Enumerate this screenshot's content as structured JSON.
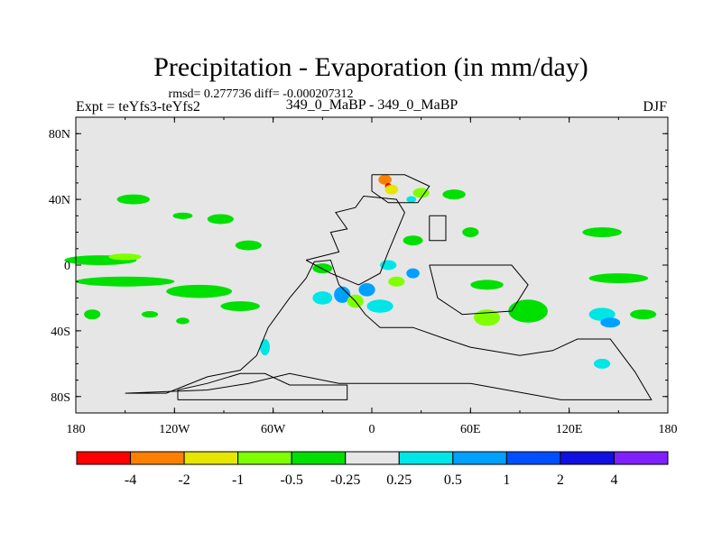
{
  "chart_data": {
    "type": "heatmap",
    "title": "Precipitation - Evaporation (in mm/day)",
    "stats_text": "rmsd= 0.277736  diff= -0.000207312",
    "left_label": "Expt = teYfs3-teYfs2",
    "center_label": "349_0_MaBP - 349_0_MaBP",
    "right_label": "DJF",
    "x_ticks": [
      {
        "value": -180,
        "label": "180"
      },
      {
        "value": -120,
        "label": "120W"
      },
      {
        "value": -60,
        "label": "60W"
      },
      {
        "value": 0,
        "label": "0"
      },
      {
        "value": 60,
        "label": "60E"
      },
      {
        "value": 120,
        "label": "120E"
      },
      {
        "value": 180,
        "label": "180"
      }
    ],
    "y_ticks": [
      {
        "value": 80,
        "label": "80N"
      },
      {
        "value": 40,
        "label": "40N"
      },
      {
        "value": 0,
        "label": "0"
      },
      {
        "value": -40,
        "label": "40S"
      },
      {
        "value": -80,
        "label": "80S"
      }
    ],
    "xlim": [
      -180,
      180
    ],
    "ylim": [
      -90,
      90
    ],
    "colorbar": {
      "colors": [
        "#ff0000",
        "#ff8000",
        "#e6e600",
        "#80ff00",
        "#00e000",
        "#e6e6e6",
        "#00e6e6",
        "#00a0ff",
        "#0050ff",
        "#1010e0",
        "#8020ff"
      ],
      "labels": [
        "-4",
        "-2",
        "-1",
        "-0.5",
        "-0.25",
        "0.25",
        "0.5",
        "1",
        "2",
        "4"
      ]
    },
    "background_color": "#e6e6e6",
    "anomalies": [
      {
        "lon": -165,
        "lat": 3,
        "rx": 22,
        "ry": 3,
        "level": -0.25
      },
      {
        "lon": -150,
        "lat": 5,
        "rx": 10,
        "ry": 2,
        "level": -0.5
      },
      {
        "lon": -150,
        "lat": -10,
        "rx": 30,
        "ry": 3,
        "level": -0.25
      },
      {
        "lon": -105,
        "lat": -16,
        "rx": 20,
        "ry": 4,
        "level": -0.25
      },
      {
        "lon": -80,
        "lat": -25,
        "rx": 12,
        "ry": 3,
        "level": -0.25
      },
      {
        "lon": -145,
        "lat": 40,
        "rx": 10,
        "ry": 3,
        "level": -0.25
      },
      {
        "lon": -165,
        "lat": 25,
        "rx": 8,
        "ry": 3,
        "level": 0.25
      },
      {
        "lon": -92,
        "lat": 28,
        "rx": 8,
        "ry": 3,
        "level": -0.25
      },
      {
        "lon": -75,
        "lat": 12,
        "rx": 8,
        "ry": 3,
        "level": -0.25
      },
      {
        "lon": -115,
        "lat": 30,
        "rx": 6,
        "ry": 2,
        "level": -0.25
      },
      {
        "lon": -170,
        "lat": -30,
        "rx": 5,
        "ry": 3,
        "level": -0.25
      },
      {
        "lon": -135,
        "lat": -30,
        "rx": 5,
        "ry": 2,
        "level": -0.25
      },
      {
        "lon": -115,
        "lat": -34,
        "rx": 4,
        "ry": 2,
        "level": -0.25
      },
      {
        "lon": -30,
        "lat": -2,
        "rx": 6,
        "ry": 3,
        "level": -0.25
      },
      {
        "lon": -20,
        "lat": 5,
        "rx": 6,
        "ry": 3,
        "level": 0.25
      },
      {
        "lon": -30,
        "lat": -20,
        "rx": 6,
        "ry": 4,
        "level": 0.5
      },
      {
        "lon": -18,
        "lat": -18,
        "rx": 5,
        "ry": 5,
        "level": 1
      },
      {
        "lon": -10,
        "lat": -22,
        "rx": 5,
        "ry": 4,
        "level": -0.5
      },
      {
        "lon": -3,
        "lat": -15,
        "rx": 5,
        "ry": 4,
        "level": 1
      },
      {
        "lon": 5,
        "lat": -25,
        "rx": 8,
        "ry": 4,
        "level": 0.5
      },
      {
        "lon": 15,
        "lat": -10,
        "rx": 5,
        "ry": 3,
        "level": -0.5
      },
      {
        "lon": 10,
        "lat": 0,
        "rx": 5,
        "ry": 3,
        "level": 0.5
      },
      {
        "lon": 25,
        "lat": -5,
        "rx": 4,
        "ry": 3,
        "level": 1
      },
      {
        "lon": -8,
        "lat": -30,
        "rx": 4,
        "ry": 2,
        "level": 0.25
      },
      {
        "lon": 8,
        "lat": 52,
        "rx": 4,
        "ry": 3,
        "level": -2
      },
      {
        "lon": 10,
        "lat": 48,
        "rx": 2,
        "ry": 2,
        "level": -4
      },
      {
        "lon": 12,
        "lat": 46,
        "rx": 4,
        "ry": 3,
        "level": -1
      },
      {
        "lon": 30,
        "lat": 44,
        "rx": 5,
        "ry": 3,
        "level": -0.5
      },
      {
        "lon": 21,
        "lat": 47,
        "rx": 4,
        "ry": 3,
        "level": 0.25
      },
      {
        "lon": 24,
        "lat": 40,
        "rx": 3,
        "ry": 2,
        "level": 0.5
      },
      {
        "lon": 50,
        "lat": 43,
        "rx": 7,
        "ry": 3,
        "level": -0.25
      },
      {
        "lon": 60,
        "lat": 20,
        "rx": 5,
        "ry": 3,
        "level": -0.25
      },
      {
        "lon": 25,
        "lat": 15,
        "rx": 6,
        "ry": 3,
        "level": -0.25
      },
      {
        "lon": 50,
        "lat": 30,
        "rx": 4,
        "ry": 2,
        "level": 0.25
      },
      {
        "lon": 55,
        "lat": -10,
        "rx": 20,
        "ry": 3,
        "level": 0.25
      },
      {
        "lon": 70,
        "lat": -12,
        "rx": 10,
        "ry": 3,
        "level": -0.25
      },
      {
        "lon": 95,
        "lat": -28,
        "rx": 12,
        "ry": 7,
        "level": -0.25
      },
      {
        "lon": 70,
        "lat": -32,
        "rx": 8,
        "ry": 5,
        "level": -0.5
      },
      {
        "lon": 60,
        "lat": -22,
        "rx": 8,
        "ry": 3,
        "level": 0.25
      },
      {
        "lon": 125,
        "lat": -20,
        "rx": 12,
        "ry": 4,
        "level": 0.25
      },
      {
        "lon": 140,
        "lat": -30,
        "rx": 8,
        "ry": 4,
        "level": 0.5
      },
      {
        "lon": 145,
        "lat": -35,
        "rx": 6,
        "ry": 3,
        "level": 1
      },
      {
        "lon": 165,
        "lat": -30,
        "rx": 8,
        "ry": 3,
        "level": -0.25
      },
      {
        "lon": 150,
        "lat": -8,
        "rx": 18,
        "ry": 3,
        "level": -0.25
      },
      {
        "lon": 140,
        "lat": 20,
        "rx": 12,
        "ry": 3,
        "level": -0.25
      },
      {
        "lon": 165,
        "lat": 10,
        "rx": 10,
        "ry": 3,
        "level": 0.25
      },
      {
        "lon": 100,
        "lat": 0,
        "rx": 8,
        "ry": 2,
        "level": 0.25
      },
      {
        "lon": 50,
        "lat": -55,
        "rx": 8,
        "ry": 3,
        "level": 0.25
      },
      {
        "lon": 95,
        "lat": -60,
        "rx": 6,
        "ry": 3,
        "level": 0.25
      },
      {
        "lon": 140,
        "lat": -60,
        "rx": 5,
        "ry": 3,
        "level": 0.5
      },
      {
        "lon": -100,
        "lat": -55,
        "rx": 5,
        "ry": 3,
        "level": 0.25
      },
      {
        "lon": -65,
        "lat": -50,
        "rx": 3,
        "ry": 5,
        "level": 0.5
      },
      {
        "lon": -40,
        "lat": -70,
        "rx": 4,
        "ry": 3,
        "level": 0.25
      },
      {
        "lon": -170,
        "lat": -58,
        "rx": 5,
        "ry": 3,
        "level": 0.25
      }
    ],
    "continents": [
      [
        [
          -118,
          -82
        ],
        [
          -15,
          -82
        ],
        [
          -15,
          -73
        ],
        [
          -50,
          -73
        ],
        [
          -65,
          -66
        ],
        [
          -80,
          -66
        ],
        [
          -100,
          -72
        ],
        [
          -118,
          -76
        ],
        [
          -118,
          -82
        ]
      ],
      [
        [
          -150,
          -78
        ],
        [
          -125,
          -78
        ],
        [
          -100,
          -68
        ],
        [
          -80,
          -64
        ],
        [
          -70,
          -55
        ],
        [
          -63,
          -38
        ],
        [
          -50,
          -20
        ],
        [
          -40,
          -8
        ],
        [
          -35,
          2
        ],
        [
          -25,
          3
        ],
        [
          -20,
          -12
        ],
        [
          -10,
          -22
        ],
        [
          -4,
          -30
        ],
        [
          5,
          -38
        ],
        [
          25,
          -38
        ],
        [
          45,
          -45
        ],
        [
          60,
          -50
        ],
        [
          90,
          -55
        ],
        [
          110,
          -52
        ],
        [
          125,
          -45
        ],
        [
          145,
          -45
        ],
        [
          160,
          -65
        ],
        [
          170,
          -82
        ],
        [
          115,
          -82
        ],
        [
          60,
          -72
        ],
        [
          -20,
          -72
        ],
        [
          -50,
          -66
        ],
        [
          -75,
          -72
        ],
        [
          -100,
          -76
        ],
        [
          -150,
          -78
        ]
      ],
      [
        [
          -40,
          3
        ],
        [
          -20,
          8
        ],
        [
          -25,
          20
        ],
        [
          -15,
          22
        ],
        [
          -22,
          32
        ],
        [
          -10,
          35
        ],
        [
          -5,
          42
        ],
        [
          15,
          40
        ],
        [
          20,
          32
        ],
        [
          15,
          20
        ],
        [
          10,
          8
        ],
        [
          5,
          -5
        ],
        [
          -8,
          -12
        ],
        [
          -25,
          -5
        ],
        [
          -40,
          3
        ]
      ],
      [
        [
          0,
          55
        ],
        [
          20,
          55
        ],
        [
          35,
          48
        ],
        [
          28,
          38
        ],
        [
          10,
          38
        ],
        [
          0,
          45
        ],
        [
          0,
          55
        ]
      ],
      [
        [
          35,
          30
        ],
        [
          45,
          30
        ],
        [
          45,
          15
        ],
        [
          35,
          15
        ],
        [
          35,
          30
        ]
      ],
      [
        [
          35,
          0
        ],
        [
          85,
          0
        ],
        [
          95,
          -12
        ],
        [
          85,
          -28
        ],
        [
          55,
          -30
        ],
        [
          40,
          -20
        ],
        [
          35,
          0
        ]
      ]
    ]
  }
}
